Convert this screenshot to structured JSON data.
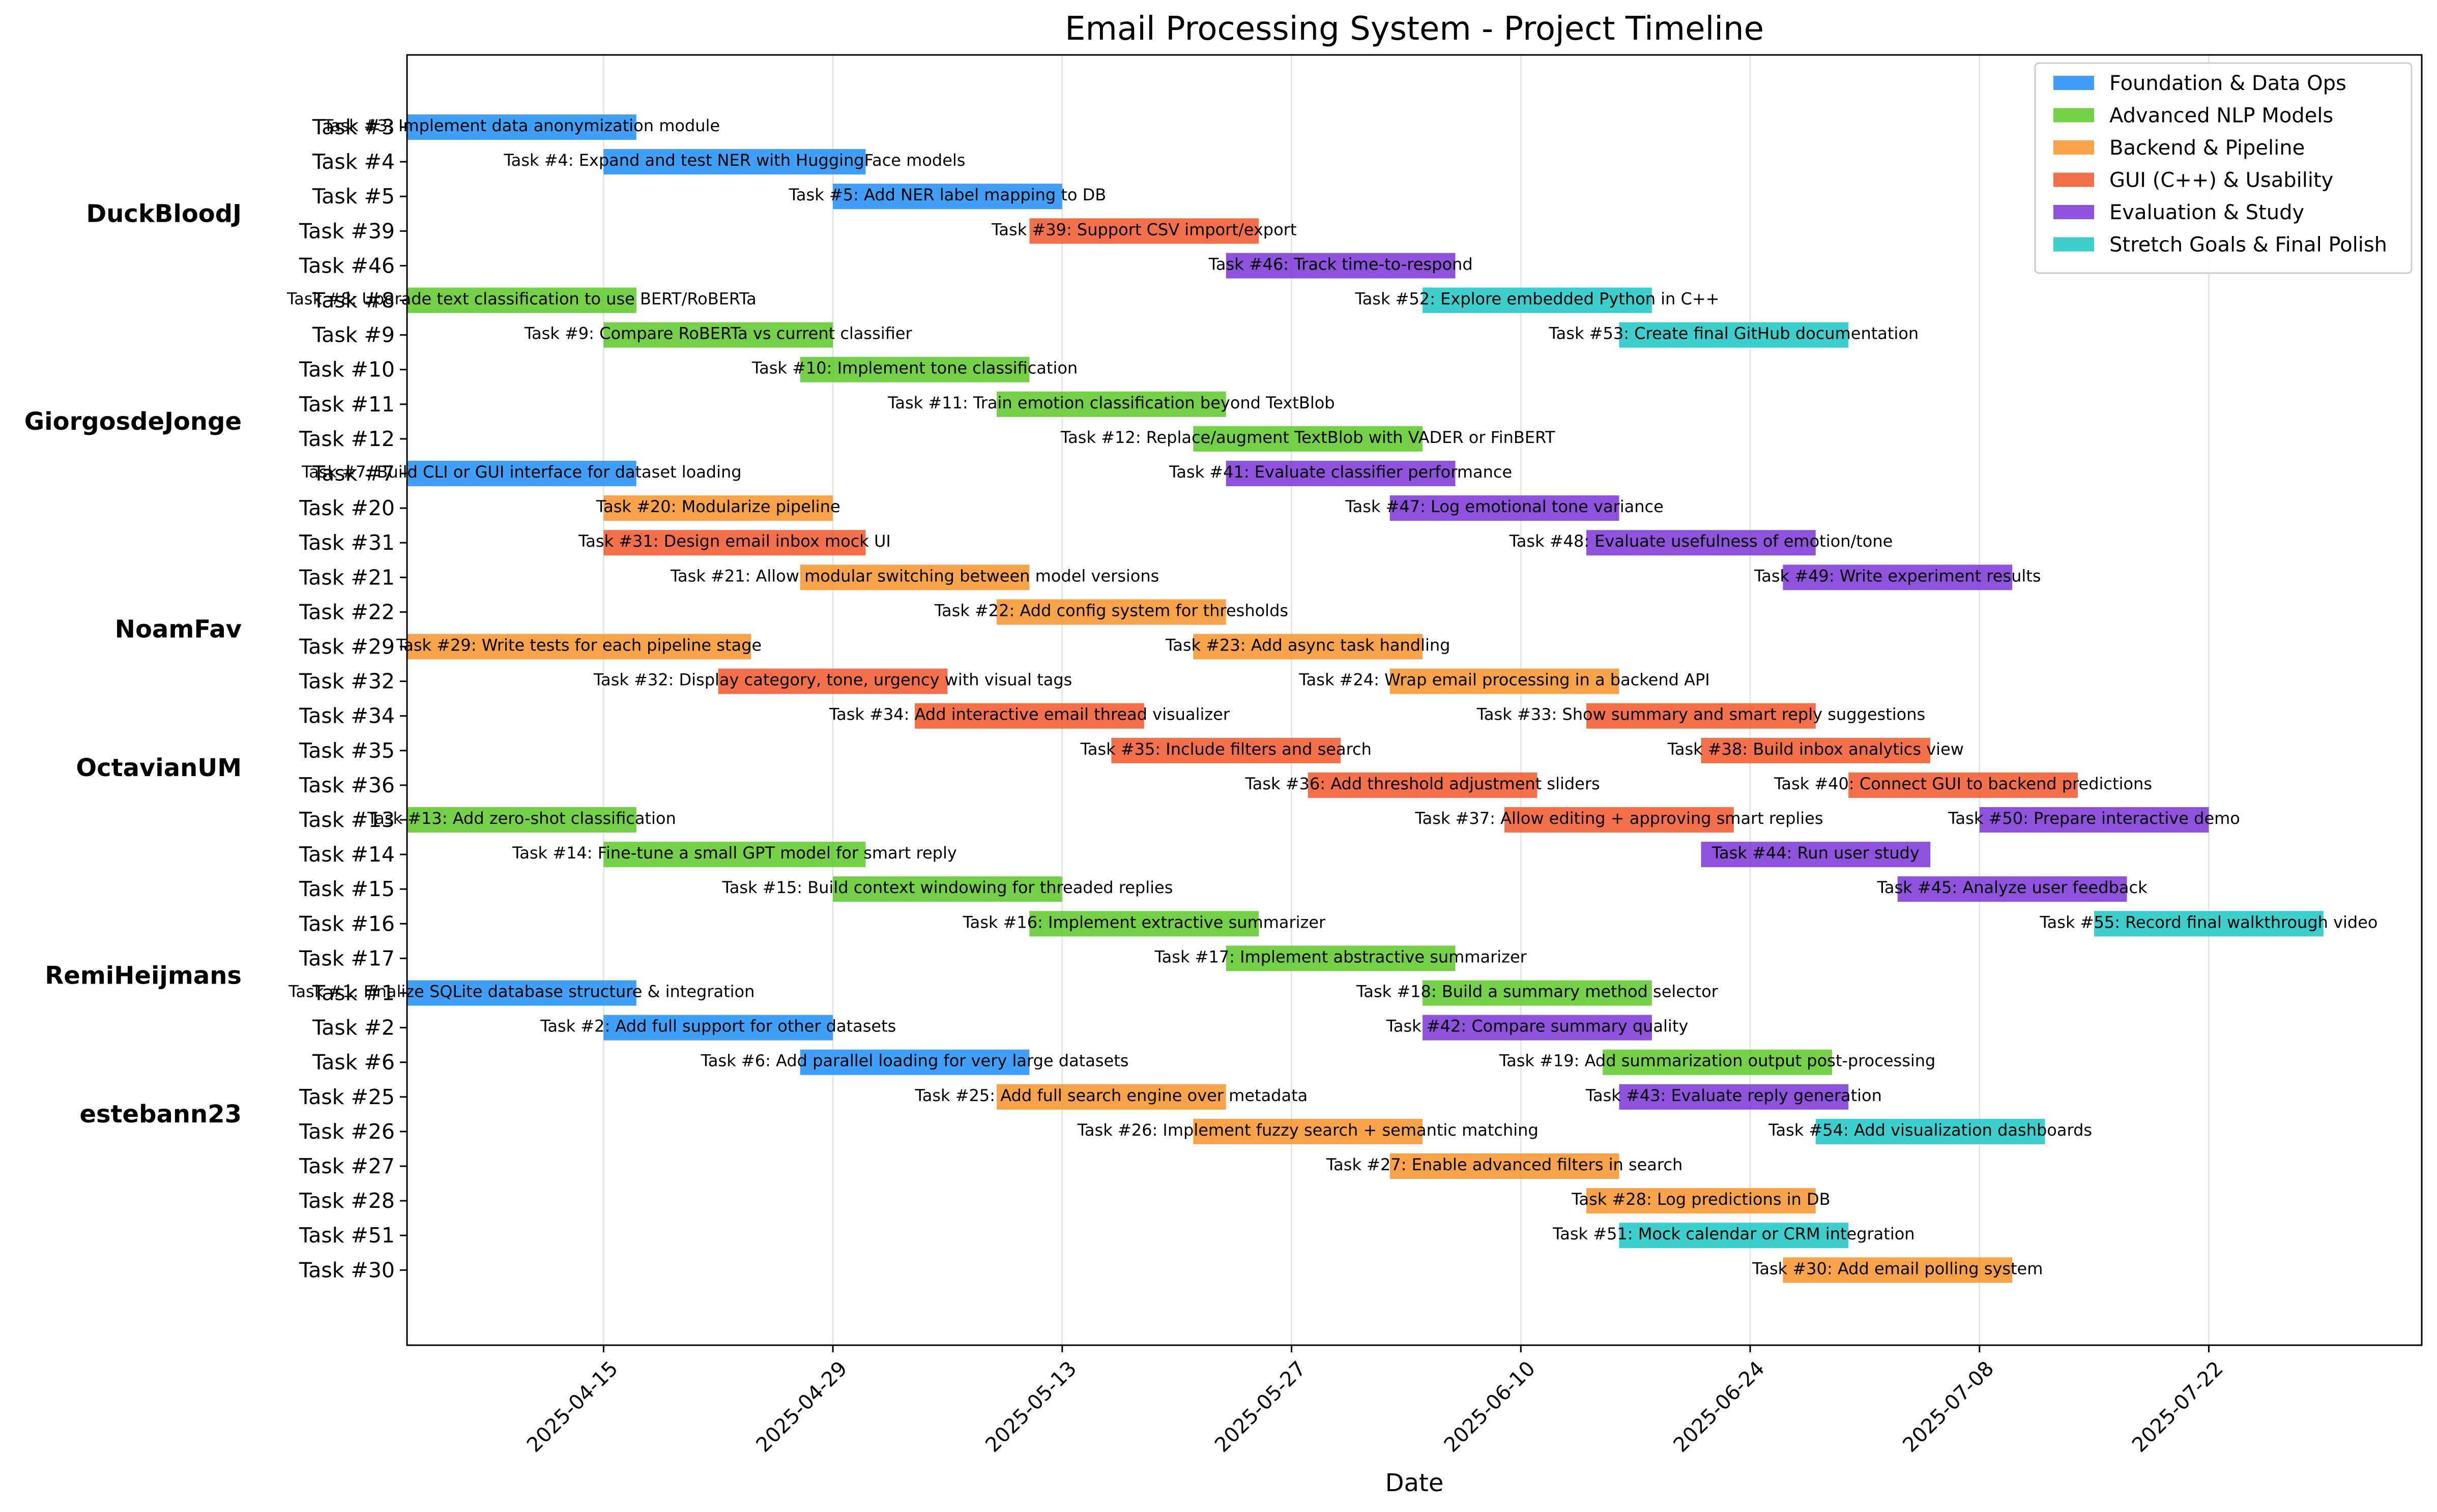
{
  "chart_data": {
    "type": "gantt",
    "title": "Email Processing System - Project Timeline",
    "xlabel": "Date",
    "ylabel": "",
    "grid": "vertical",
    "legend_position": "top-right",
    "x_ticks": [
      "2025-04-15",
      "2025-04-29",
      "2025-05-13",
      "2025-05-27",
      "2025-06-10",
      "2025-06-24",
      "2025-07-08",
      "2025-07-22"
    ],
    "xlim": [
      "2025-04-03",
      "2025-08-04"
    ],
    "categories": [
      {
        "name": "Foundation & Data Ops",
        "color": "#1f8ef7"
      },
      {
        "name": "Advanced NLP Models",
        "color": "#5cc826"
      },
      {
        "name": "Backend & Pipeline",
        "color": "#f79329"
      },
      {
        "name": "GUI (C++) & Usability",
        "color": "#f2572b"
      },
      {
        "name": "Evaluation & Study",
        "color": "#7a34d6"
      },
      {
        "name": "Stretch Goals & Final Polish",
        "color": "#1bc6c6"
      }
    ],
    "row_labels": [
      "Task #3",
      "Task #4",
      "Task #5",
      "Task #39",
      "Task #46",
      "Task #8",
      "Task #9",
      "Task #10",
      "Task #11",
      "Task #12",
      "Task #7",
      "Task #20",
      "Task #31",
      "Task #21",
      "Task #22",
      "Task #29",
      "Task #32",
      "Task #34",
      "Task #35",
      "Task #36",
      "Task #13",
      "Task #14",
      "Task #15",
      "Task #16",
      "Task #17",
      "Task #1",
      "Task #2",
      "Task #6",
      "Task #25",
      "Task #26",
      "Task #27",
      "Task #28",
      "Task #51",
      "Task #30"
    ],
    "people": [
      {
        "name": "DuckBloodJ",
        "row": 3
      },
      {
        "name": "GiorgosdeJonge",
        "row": 9
      },
      {
        "name": "NoamFav",
        "row": 15
      },
      {
        "name": "OctavianUM",
        "row": 19
      },
      {
        "name": "RemiHeijmans",
        "row": 25
      },
      {
        "name": "estebann23",
        "row": 29
      }
    ],
    "tasks": [
      {
        "row": 0,
        "label": "Task #3: Implement data anonymization module",
        "start": "2025-04-03",
        "end": "2025-04-17",
        "category": 0
      },
      {
        "row": 1,
        "label": "Task #4: Expand and test NER with HuggingFace models",
        "start": "2025-04-15",
        "end": "2025-05-01",
        "category": 0
      },
      {
        "row": 2,
        "label": "Task #5: Add NER label mapping to DB",
        "start": "2025-04-29",
        "end": "2025-05-13",
        "category": 0
      },
      {
        "row": 3,
        "label": "Task #39: Support CSV import/export",
        "start": "2025-05-11",
        "end": "2025-05-25",
        "category": 3
      },
      {
        "row": 4,
        "label": "Task #46: Track time-to-respond",
        "start": "2025-05-23",
        "end": "2025-06-06",
        "category": 4
      },
      {
        "row": 5,
        "label": "Task #8: Upgrade text classification to use BERT/RoBERTa",
        "start": "2025-04-03",
        "end": "2025-04-17",
        "category": 1
      },
      {
        "row": 5,
        "label": "Task #52: Explore embedded Python in C++",
        "start": "2025-06-04",
        "end": "2025-06-18",
        "category": 5
      },
      {
        "row": 6,
        "label": "Task #9: Compare RoBERTa vs current classifier",
        "start": "2025-04-15",
        "end": "2025-04-29",
        "category": 1
      },
      {
        "row": 6,
        "label": "Task #53: Create final GitHub documentation",
        "start": "2025-06-16",
        "end": "2025-06-30",
        "category": 5
      },
      {
        "row": 7,
        "label": "Task #10: Implement tone classification",
        "start": "2025-04-27",
        "end": "2025-05-11",
        "category": 1
      },
      {
        "row": 8,
        "label": "Task #11: Train emotion classification beyond TextBlob",
        "start": "2025-05-09",
        "end": "2025-05-23",
        "category": 1
      },
      {
        "row": 9,
        "label": "Task #12: Replace/augment TextBlob with VADER or FinBERT",
        "start": "2025-05-21",
        "end": "2025-06-04",
        "category": 1
      },
      {
        "row": 10,
        "label": "Task #7: Build CLI or GUI interface for dataset loading",
        "start": "2025-04-03",
        "end": "2025-04-17",
        "category": 0
      },
      {
        "row": 10,
        "label": "Task #41: Evaluate classifier performance",
        "start": "2025-05-23",
        "end": "2025-06-06",
        "category": 4
      },
      {
        "row": 11,
        "label": "Task #20: Modularize pipeline",
        "start": "2025-04-15",
        "end": "2025-04-29",
        "category": 2
      },
      {
        "row": 11,
        "label": "Task #47: Log emotional tone variance",
        "start": "2025-06-02",
        "end": "2025-06-16",
        "category": 4
      },
      {
        "row": 12,
        "label": "Task #31: Design email inbox mock UI",
        "start": "2025-04-15",
        "end": "2025-05-01",
        "category": 3
      },
      {
        "row": 12,
        "label": "Task #48: Evaluate usefulness of emotion/tone",
        "start": "2025-06-14",
        "end": "2025-06-28",
        "category": 4
      },
      {
        "row": 13,
        "label": "Task #21: Allow modular switching between model versions",
        "start": "2025-04-27",
        "end": "2025-05-11",
        "category": 2
      },
      {
        "row": 13,
        "label": "Task #49: Write experiment results",
        "start": "2025-06-26",
        "end": "2025-07-10",
        "category": 4
      },
      {
        "row": 14,
        "label": "Task #22: Add config system for thresholds",
        "start": "2025-05-09",
        "end": "2025-05-23",
        "category": 2
      },
      {
        "row": 15,
        "label": "Task #29: Write tests for each pipeline stage",
        "start": "2025-04-03",
        "end": "2025-04-24",
        "category": 2
      },
      {
        "row": 15,
        "label": "Task #23: Add async task handling",
        "start": "2025-05-21",
        "end": "2025-06-04",
        "category": 2
      },
      {
        "row": 16,
        "label": "Task #32: Display category, tone, urgency with visual tags",
        "start": "2025-04-22",
        "end": "2025-05-06",
        "category": 3
      },
      {
        "row": 16,
        "label": "Task #24: Wrap email processing in a backend API",
        "start": "2025-06-02",
        "end": "2025-06-16",
        "category": 2
      },
      {
        "row": 17,
        "label": "Task #34: Add interactive email thread visualizer",
        "start": "2025-05-04",
        "end": "2025-05-18",
        "category": 3
      },
      {
        "row": 17,
        "label": "Task #33: Show summary and smart reply suggestions",
        "start": "2025-06-14",
        "end": "2025-06-28",
        "category": 3
      },
      {
        "row": 18,
        "label": "Task #35: Include filters and search",
        "start": "2025-05-16",
        "end": "2025-05-30",
        "category": 3
      },
      {
        "row": 18,
        "label": "Task #38: Build inbox analytics view",
        "start": "2025-06-21",
        "end": "2025-07-05",
        "category": 3
      },
      {
        "row": 19,
        "label": "Task #36: Add threshold adjustment sliders",
        "start": "2025-05-28",
        "end": "2025-06-11",
        "category": 3
      },
      {
        "row": 19,
        "label": "Task #40: Connect GUI to backend predictions",
        "start": "2025-06-30",
        "end": "2025-07-14",
        "category": 3
      },
      {
        "row": 20,
        "label": "Task #13: Add zero-shot classification",
        "start": "2025-04-03",
        "end": "2025-04-17",
        "category": 1
      },
      {
        "row": 20,
        "label": "Task #37: Allow editing + approving smart replies",
        "start": "2025-06-09",
        "end": "2025-06-23",
        "category": 3
      },
      {
        "row": 20,
        "label": "Task #50: Prepare interactive demo",
        "start": "2025-07-08",
        "end": "2025-07-22",
        "category": 4
      },
      {
        "row": 21,
        "label": "Task #14: Fine-tune a small GPT model for smart reply",
        "start": "2025-04-15",
        "end": "2025-05-01",
        "category": 1
      },
      {
        "row": 21,
        "label": "Task #44: Run user study",
        "start": "2025-06-21",
        "end": "2025-07-05",
        "category": 4
      },
      {
        "row": 22,
        "label": "Task #15: Build context windowing for threaded replies",
        "start": "2025-04-29",
        "end": "2025-05-13",
        "category": 1
      },
      {
        "row": 22,
        "label": "Task #45: Analyze user feedback",
        "start": "2025-07-03",
        "end": "2025-07-17",
        "category": 4
      },
      {
        "row": 23,
        "label": "Task #16: Implement extractive summarizer",
        "start": "2025-05-11",
        "end": "2025-05-25",
        "category": 1
      },
      {
        "row": 23,
        "label": "Task #55: Record final walkthrough video",
        "start": "2025-07-15",
        "end": "2025-07-29",
        "category": 5
      },
      {
        "row": 24,
        "label": "Task #17: Implement abstractive summarizer",
        "start": "2025-05-23",
        "end": "2025-06-06",
        "category": 1
      },
      {
        "row": 25,
        "label": "Task #1: Finalize SQLite database structure & integration",
        "start": "2025-04-03",
        "end": "2025-04-17",
        "category": 0
      },
      {
        "row": 25,
        "label": "Task #18: Build a summary method selector",
        "start": "2025-06-04",
        "end": "2025-06-18",
        "category": 1
      },
      {
        "row": 26,
        "label": "Task #2: Add full support for other datasets",
        "start": "2025-04-15",
        "end": "2025-04-29",
        "category": 0
      },
      {
        "row": 26,
        "label": "Task #42: Compare summary quality",
        "start": "2025-06-04",
        "end": "2025-06-18",
        "category": 4
      },
      {
        "row": 27,
        "label": "Task #6: Add parallel loading for very large datasets",
        "start": "2025-04-27",
        "end": "2025-05-11",
        "category": 0
      },
      {
        "row": 27,
        "label": "Task #19: Add summarization output post-processing",
        "start": "2025-06-15",
        "end": "2025-06-29",
        "category": 1
      },
      {
        "row": 28,
        "label": "Task #25: Add full search engine over metadata",
        "start": "2025-05-09",
        "end": "2025-05-23",
        "category": 2
      },
      {
        "row": 28,
        "label": "Task #43: Evaluate reply generation",
        "start": "2025-06-16",
        "end": "2025-06-30",
        "category": 4
      },
      {
        "row": 29,
        "label": "Task #26: Implement fuzzy search + semantic matching",
        "start": "2025-05-21",
        "end": "2025-06-04",
        "category": 2
      },
      {
        "row": 29,
        "label": "Task #54: Add visualization dashboards",
        "start": "2025-06-28",
        "end": "2025-07-12",
        "category": 5
      },
      {
        "row": 30,
        "label": "Task #27: Enable advanced filters in search",
        "start": "2025-06-02",
        "end": "2025-06-16",
        "category": 2
      },
      {
        "row": 31,
        "label": "Task #28: Log predictions in DB",
        "start": "2025-06-14",
        "end": "2025-06-28",
        "category": 2
      },
      {
        "row": 32,
        "label": "Task #51: Mock calendar or CRM integration",
        "start": "2025-06-16",
        "end": "2025-06-30",
        "category": 5
      },
      {
        "row": 33,
        "label": "Task #30: Add email polling system",
        "start": "2025-06-26",
        "end": "2025-07-10",
        "category": 2
      }
    ]
  }
}
